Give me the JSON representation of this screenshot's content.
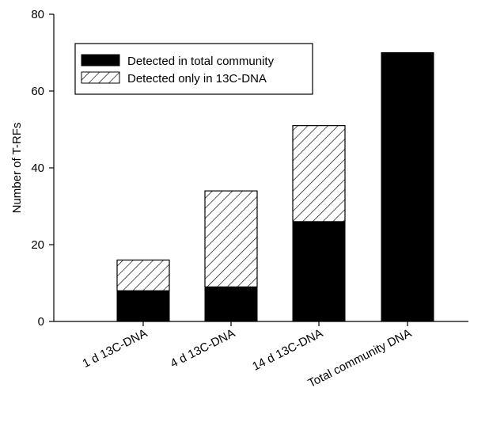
{
  "chart_data": {
    "type": "bar",
    "stacked": true,
    "ylabel": "Number of T-RFs",
    "ylim": [
      0,
      80
    ],
    "yticks": [
      0,
      20,
      40,
      60,
      80
    ],
    "categories": [
      "1 d 13C-DNA",
      "4 d 13C-DNA",
      "14 d 13C-DNA",
      "Total community DNA"
    ],
    "series": [
      {
        "name": "Detected in total community",
        "values": [
          8,
          9,
          26,
          70
        ],
        "fill": "solid",
        "color": "#000000"
      },
      {
        "name": "Detected only in 13C-DNA",
        "values": [
          8,
          25,
          25,
          0
        ],
        "fill": "hatched",
        "color": "#000000"
      }
    ],
    "legend_position": "top-left",
    "grid": false
  }
}
